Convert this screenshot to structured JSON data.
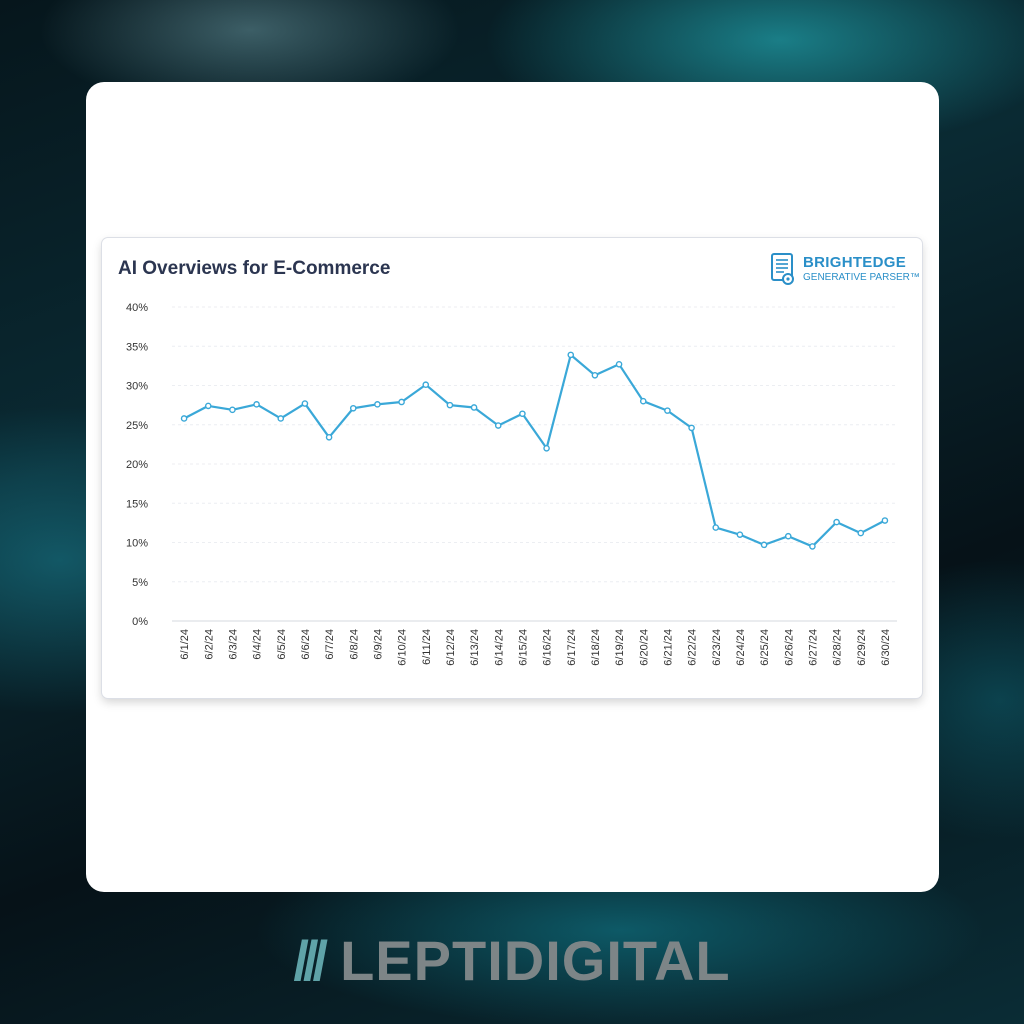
{
  "chart_data": {
    "type": "line",
    "title": "AI Overviews for E-Commerce",
    "xlabel": "",
    "ylabel": "",
    "ylim": [
      0,
      40
    ],
    "yticks": [
      "0%",
      "5%",
      "10%",
      "15%",
      "20%",
      "25%",
      "30%",
      "35%",
      "40%"
    ],
    "ytick_values": [
      0,
      5,
      10,
      15,
      20,
      25,
      30,
      35,
      40
    ],
    "categories": [
      "6/1/24",
      "6/2/24",
      "6/3/24",
      "6/4/24",
      "6/5/24",
      "6/6/24",
      "6/7/24",
      "6/8/24",
      "6/9/24",
      "6/10/24",
      "6/11/24",
      "6/12/24",
      "6/13/24",
      "6/14/24",
      "6/15/24",
      "6/16/24",
      "6/17/24",
      "6/18/24",
      "6/19/24",
      "6/20/24",
      "6/21/24",
      "6/22/24",
      "6/23/24",
      "6/24/24",
      "6/25/24",
      "6/26/24",
      "6/27/24",
      "6/28/24",
      "6/29/24",
      "6/30/24"
    ],
    "series": [
      {
        "values": [
          25.8,
          27.4,
          26.9,
          27.6,
          25.8,
          27.7,
          23.4,
          27.1,
          27.6,
          27.9,
          30.1,
          27.5,
          27.2,
          24.9,
          26.4,
          22.0,
          33.9,
          31.3,
          32.7,
          28.0,
          26.8,
          24.6,
          11.9,
          11.0,
          9.7,
          10.8,
          9.5,
          12.6,
          11.2,
          12.8
        ],
        "color": "#3aa8d8"
      }
    ],
    "grid": true,
    "legend": "none"
  },
  "logo": {
    "name": "BRIGHTEDGE",
    "subtitle": "GENERATIVE PARSER™",
    "icon": "document-parser-icon",
    "color": "#2a8fc8"
  },
  "watermark": {
    "slashes": "///",
    "text": "LEPTIDIGITAL"
  }
}
